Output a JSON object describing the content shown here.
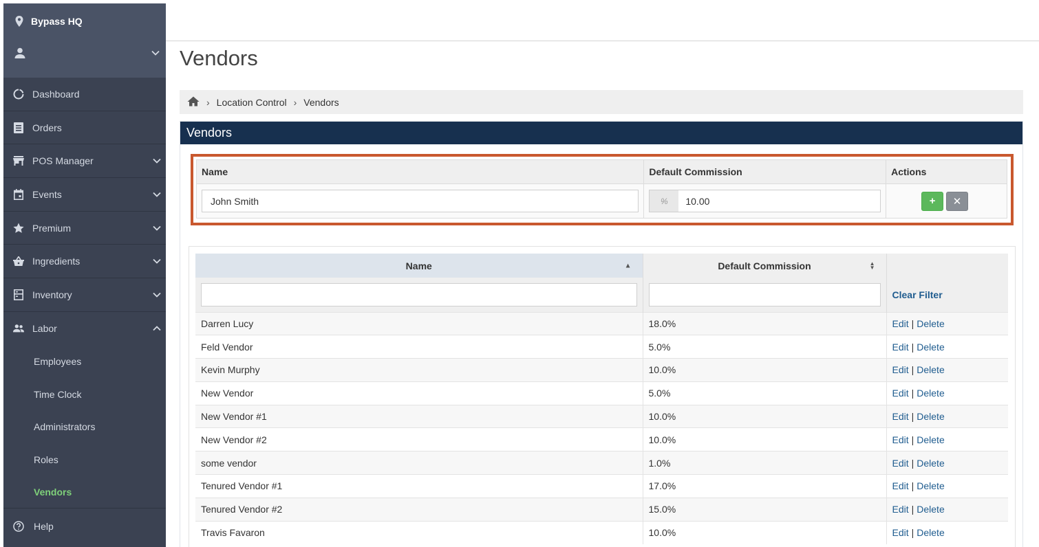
{
  "sidebar": {
    "location": "Bypass HQ",
    "items": [
      {
        "label": "Dashboard"
      },
      {
        "label": "Orders"
      },
      {
        "label": "POS Manager"
      },
      {
        "label": "Events"
      },
      {
        "label": "Premium"
      },
      {
        "label": "Ingredients"
      },
      {
        "label": "Inventory"
      },
      {
        "label": "Labor"
      }
    ],
    "labor_sub": [
      {
        "label": "Employees"
      },
      {
        "label": "Time Clock"
      },
      {
        "label": "Administrators"
      },
      {
        "label": "Roles"
      },
      {
        "label": "Vendors"
      }
    ],
    "help": "Help"
  },
  "page": {
    "title": "Vendors"
  },
  "breadcrumb": {
    "items": [
      "Location Control",
      "Vendors"
    ]
  },
  "panel": {
    "title": "Vendors"
  },
  "add_form": {
    "col_name": "Name",
    "col_commission": "Default Commission",
    "col_actions": "Actions",
    "name_value": "John Smith",
    "percent_addon": "%",
    "commission_value": "10.00",
    "add_symbol": "+",
    "cancel_symbol": "✕"
  },
  "list": {
    "col_name": "Name",
    "col_commission": "Default Commission",
    "clear_filter": "Clear Filter",
    "edit_label": "Edit",
    "delete_label": "Delete",
    "separator": "|",
    "rows": [
      {
        "name": "Darren Lucy",
        "commission": "18.0%"
      },
      {
        "name": "Feld Vendor",
        "commission": "5.0%"
      },
      {
        "name": "Kevin Murphy",
        "commission": "10.0%"
      },
      {
        "name": "New Vendor",
        "commission": "5.0%"
      },
      {
        "name": "New Vendor #1",
        "commission": "10.0%"
      },
      {
        "name": "New Vendor #2",
        "commission": "10.0%"
      },
      {
        "name": "some vendor",
        "commission": "1.0%"
      },
      {
        "name": "Tenured Vendor #1",
        "commission": "17.0%"
      },
      {
        "name": "Tenured Vendor #2",
        "commission": "15.0%"
      },
      {
        "name": "Travis Favaron",
        "commission": "10.0%"
      }
    ]
  }
}
